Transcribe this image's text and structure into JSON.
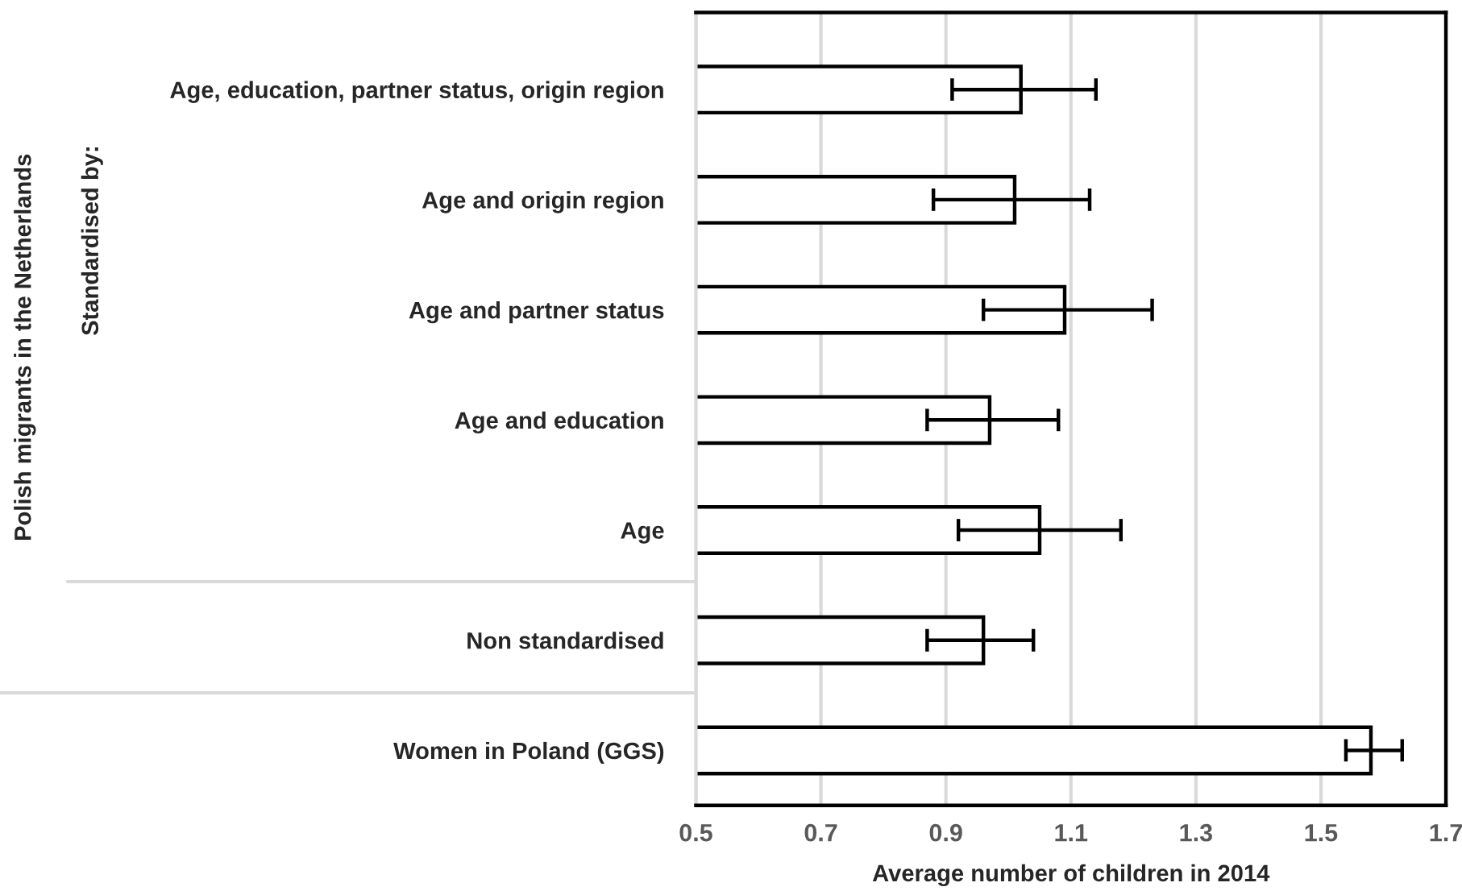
{
  "chart_data": {
    "type": "bar",
    "orientation": "horizontal",
    "xlabel": "Average number of children in 2014",
    "categories": [
      "Age, education, partner status, origin region",
      "Age and origin region",
      "Age and partner status",
      "Age and education",
      "Age",
      "Non standardised",
      "Women in Poland (GGS)"
    ],
    "values": [
      1.02,
      1.01,
      1.09,
      0.97,
      1.05,
      0.96,
      1.58
    ],
    "errors": [
      [
        0.91,
        1.14
      ],
      [
        0.88,
        1.13
      ],
      [
        0.96,
        1.23
      ],
      [
        0.87,
        1.08
      ],
      [
        0.92,
        1.18
      ],
      [
        0.87,
        1.04
      ],
      [
        1.54,
        1.63
      ]
    ],
    "color": "#ffffff",
    "xlim": [
      0.5,
      1.7
    ],
    "xticks": [
      0.5,
      0.7,
      0.9,
      1.1,
      1.3,
      1.5,
      1.7
    ],
    "grid": "x",
    "annotations": [
      "Polish migrants in the Netherlands",
      "Standardised by:"
    ]
  }
}
